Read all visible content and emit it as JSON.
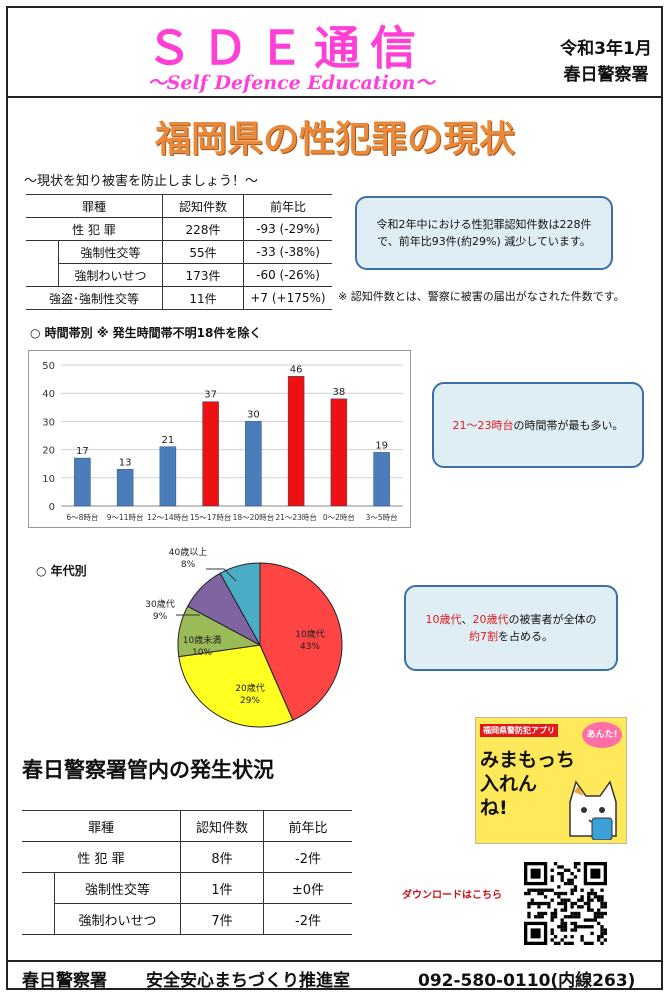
{
  "header": {
    "title": "ＳＤＥ通信",
    "subtitle": "～Self Defence Education～",
    "date": "令和3年1月",
    "office": "春日警察署"
  },
  "main_title": "福岡県の性犯罪の現状",
  "subtitle": "～現状を知り被害を防止しましょう！～",
  "pref_table": {
    "headers": [
      "罪種",
      "認知件数",
      "前年比"
    ],
    "rows": [
      {
        "name": "性 犯 罪",
        "count": "228件",
        "change": "-93 (-29%)"
      },
      {
        "name": "強制性交等",
        "count": "55件",
        "change": "-33 (-38%)"
      },
      {
        "name": "強制わいせつ",
        "count": "173件",
        "change": "-60 (-26%)"
      },
      {
        "name": "強盗･強制性交等",
        "count": "11件",
        "change": "+7 (+175%)"
      }
    ]
  },
  "callout1": "令和2年中における性犯罪認知件数は228件で、前年比93件(約29%) 減少しています。",
  "note": "※ 認知件数とは、警察に被害の届出がなされた件数です。",
  "time_section_label": "○ 時間帯別 ※ 発生時間帯不明18件を除く",
  "age_section_label": "○ 年代別",
  "callout2": {
    "highlight": "21～23時台",
    "rest": "の時間帯が最も多い。"
  },
  "callout3": {
    "h1": "10歳代",
    "sep": "、",
    "h2": "20歳代",
    "mid": "の被害者が全体の",
    "h3": "約7割",
    "end": "を占める。"
  },
  "local_title": "春日警察署管内の発生状況",
  "local_table": {
    "headers": [
      "罪種",
      "認知件数",
      "前年比"
    ],
    "rows": [
      {
        "name": "性 犯 罪",
        "count": "8件",
        "change": "-2件"
      },
      {
        "name": "強制性交等",
        "count": "1件",
        "change": "±0件"
      },
      {
        "name": "強制わいせつ",
        "count": "7件",
        "change": "-2件"
      }
    ]
  },
  "app_ad": {
    "top": "福岡県警防犯アプリ",
    "l1": "みまもっち",
    "l2": "入れん",
    "l3": "ね!",
    "bubble": "あんた!"
  },
  "download_label": "ダウンロードはこちら",
  "footer": {
    "office": "春日警察署",
    "dept": "安全安心まちづくり推進室",
    "phone": "092-580-0110(内線263)"
  },
  "colors": {
    "pink": "#ff3fd6",
    "orange": "#e98a3b",
    "blue_bar": "#4a7ebb",
    "red_bar": "#ee1111",
    "callout_border": "#3c6ea7"
  },
  "chart_data": [
    {
      "type": "bar",
      "categories": [
        "6～8時台",
        "9～11時台",
        "12～14時台",
        "15～17時台",
        "18～20時台",
        "21～23時台",
        "0～2時台",
        "3～5時台"
      ],
      "values": [
        17,
        13,
        21,
        37,
        30,
        46,
        38,
        19
      ],
      "highlight": [
        false,
        false,
        false,
        true,
        false,
        true,
        true,
        false
      ],
      "ylim": [
        0,
        50
      ],
      "yticks": [
        0,
        10,
        20,
        30,
        40,
        50
      ],
      "grid": true
    },
    {
      "type": "pie",
      "slices": [
        {
          "label": "10歳代",
          "pct": "43%",
          "value": 43,
          "color": "#ff4444"
        },
        {
          "label": "20歳代",
          "pct": "29%",
          "value": 29,
          "color": "#ffff22"
        },
        {
          "label": "10歳未満",
          "pct": "10%",
          "value": 10,
          "color": "#9bbb59"
        },
        {
          "label": "30歳代",
          "pct": "9%",
          "value": 9,
          "color": "#8064a2"
        },
        {
          "label": "40歳以上",
          "pct": "8%",
          "value": 8,
          "color": "#4bacc6"
        }
      ]
    }
  ]
}
